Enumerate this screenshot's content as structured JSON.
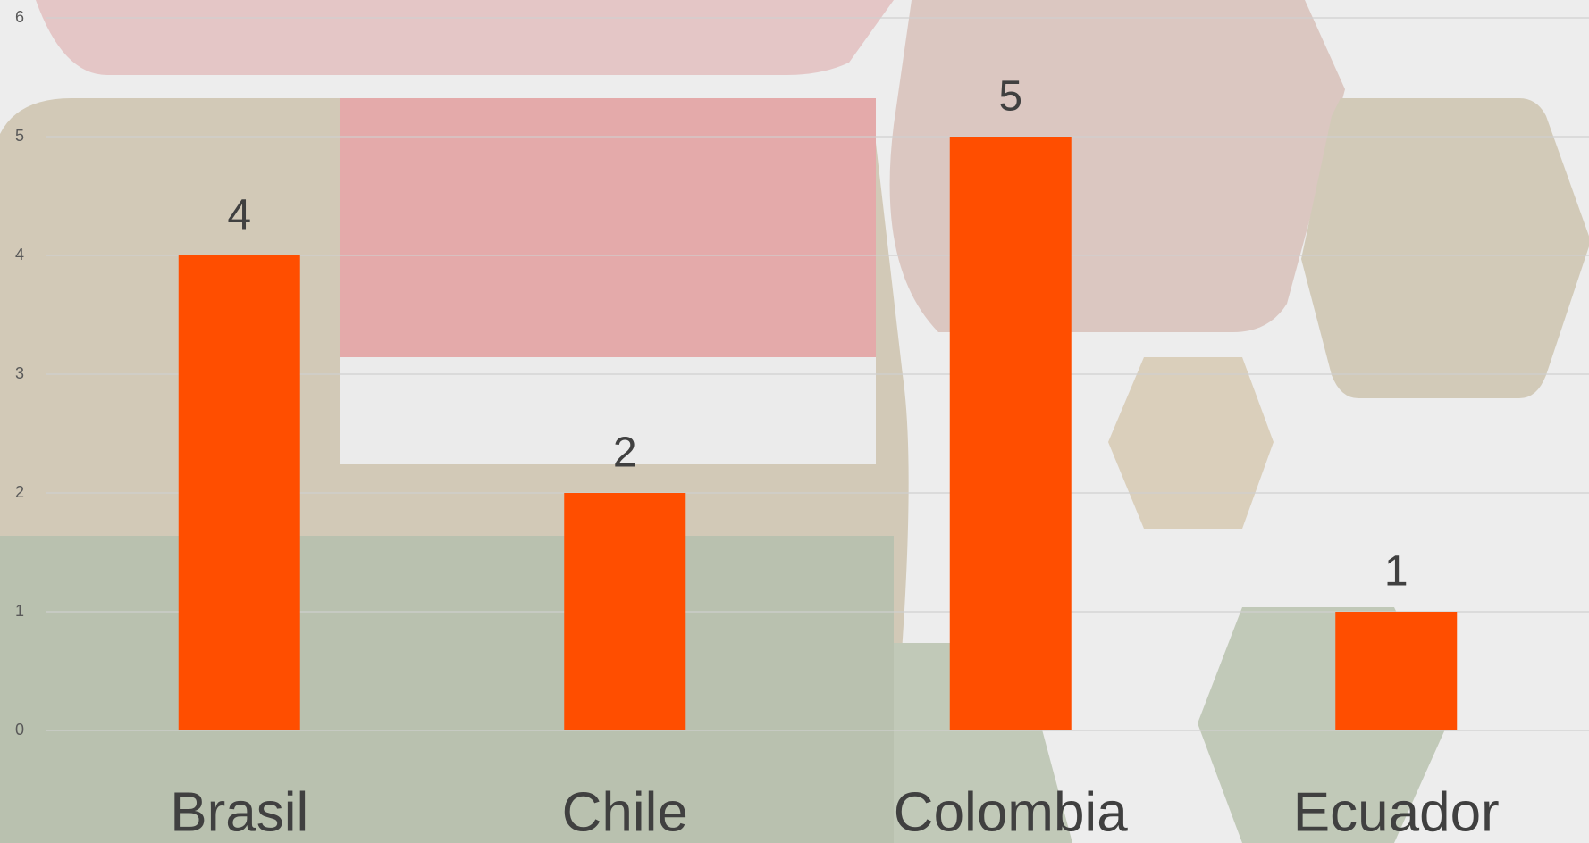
{
  "chart_data": {
    "type": "bar",
    "categories": [
      "Brasil",
      "Chile",
      "Colombia",
      "Ecuador"
    ],
    "values": [
      4,
      2,
      5,
      1
    ],
    "color": "#ff4e00",
    "ylim": [
      0,
      6
    ],
    "yticks": [
      0,
      1,
      2,
      3,
      4,
      5,
      6
    ],
    "grid": true
  }
}
